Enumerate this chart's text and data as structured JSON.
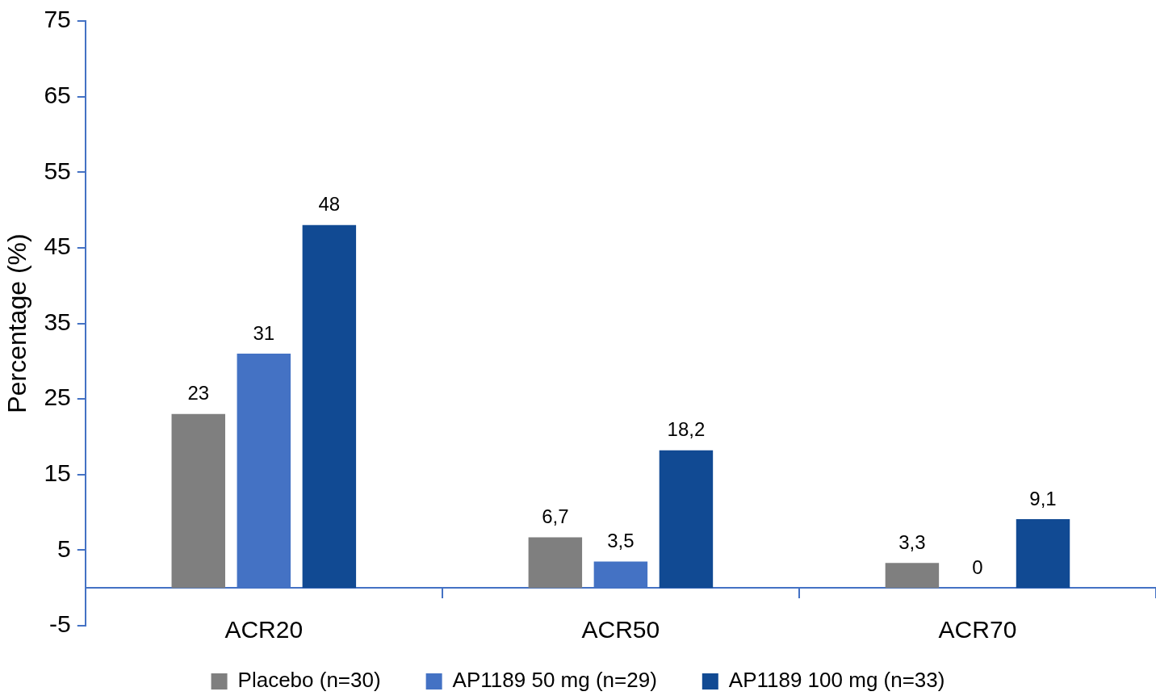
{
  "chart_data": {
    "type": "bar",
    "ylabel": "Percentage (%)",
    "categories": [
      "ACR20",
      "ACR50",
      "ACR70"
    ],
    "series": [
      {
        "name": "Placebo (n=30)",
        "color": "#7f7f7f",
        "values": [
          23,
          6.7,
          3.3
        ],
        "value_labels": [
          "23",
          "6,7",
          "3,3"
        ]
      },
      {
        "name": "AP1189 50 mg (n=29)",
        "color": "#4472c4",
        "values": [
          31,
          3.5,
          0
        ],
        "value_labels": [
          "31",
          "3,5",
          "0"
        ]
      },
      {
        "name": "AP1189 100 mg (n=33)",
        "color": "#114a93",
        "values": [
          48,
          18.2,
          9.1
        ],
        "value_labels": [
          "48",
          "18,2",
          "9,1"
        ]
      }
    ],
    "ylim": [
      -5,
      75
    ],
    "yticks": [
      -5,
      5,
      15,
      25,
      35,
      45,
      55,
      65,
      75
    ],
    "grid": false,
    "legend": "bottom"
  }
}
